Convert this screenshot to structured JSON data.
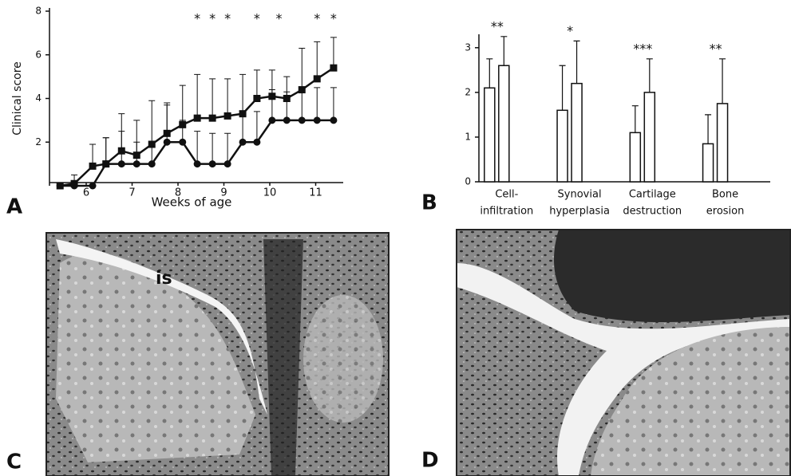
{
  "chart_data": [
    {
      "type": "line",
      "panel": "A",
      "y_label": "Clinical score",
      "x_label": "Weeks of age",
      "xlim": [
        5.2,
        11.6
      ],
      "xticks": [
        6,
        7,
        8,
        9,
        10,
        11
      ],
      "ylim": [
        0,
        8
      ],
      "yticks": [
        2,
        4,
        6,
        8
      ],
      "x": [
        5.43,
        5.74,
        6.14,
        6.43,
        6.77,
        7.1,
        7.43,
        7.76,
        8.1,
        8.42,
        8.75,
        9.08,
        9.41,
        9.72,
        10.05,
        10.37,
        10.7,
        11.03,
        11.39
      ],
      "series": [
        {
          "marker": "square",
          "color": "#111111",
          "values": [
            0,
            0.1,
            0.9,
            1.0,
            1.6,
            1.4,
            1.9,
            2.4,
            2.8,
            3.1,
            3.1,
            3.2,
            3.3,
            4.0,
            4.1,
            4.0,
            4.4,
            4.9,
            5.4
          ],
          "errors": [
            0,
            0.4,
            1.0,
            1.2,
            1.7,
            1.6,
            2.0,
            1.4,
            1.8,
            2.0,
            1.8,
            1.7,
            1.8,
            1.3,
            1.2,
            1.0,
            1.9,
            1.7,
            1.4
          ]
        },
        {
          "marker": "circle",
          "color": "#111111",
          "values": [
            0,
            0,
            0,
            1.0,
            1.0,
            1.0,
            1.0,
            2.0,
            2.0,
            1.0,
            1.0,
            1.0,
            2.0,
            2.0,
            3.0,
            3.0,
            3.0,
            3.0,
            3.0
          ],
          "errors": [
            0,
            0,
            0,
            1.2,
            1.5,
            1.0,
            1.0,
            1.7,
            1.0,
            1.5,
            1.4,
            1.4,
            1.4,
            1.4,
            1.4,
            1.3,
            1.5,
            1.5,
            1.5
          ]
        }
      ],
      "annotations": [
        {
          "text": "*",
          "x": 8.42
        },
        {
          "text": "*",
          "x": 8.75
        },
        {
          "text": "*",
          "x": 9.08
        },
        {
          "text": "*",
          "x": 9.72
        },
        {
          "text": "*",
          "x": 10.2
        },
        {
          "text": "*",
          "x": 11.03
        },
        {
          "text": "*",
          "x": 11.39
        }
      ]
    },
    {
      "type": "bar",
      "panel": "B",
      "categories": [
        [
          "Cell-",
          "infiltration"
        ],
        [
          "Synovial",
          "hyperplasia"
        ],
        [
          "Cartilage",
          "destruction"
        ],
        [
          "Bone",
          "erosion"
        ]
      ],
      "ylim": [
        0,
        3.3
      ],
      "yticks": [
        0,
        1,
        2,
        3
      ],
      "series": [
        {
          "color": "#ffffff",
          "values": [
            2.1,
            1.6,
            1.1,
            0.85
          ],
          "errors": [
            0.65,
            1.0,
            0.6,
            0.65
          ]
        },
        {
          "color": "#ffffff",
          "values": [
            2.6,
            2.2,
            2.0,
            1.75
          ],
          "errors": [
            0.65,
            0.95,
            0.75,
            1.0
          ]
        }
      ],
      "significance": [
        "**",
        "*",
        "***",
        "**"
      ]
    }
  ],
  "micrographs": [
    {
      "panel": "C",
      "annotation": "is"
    },
    {
      "panel": "D"
    }
  ]
}
